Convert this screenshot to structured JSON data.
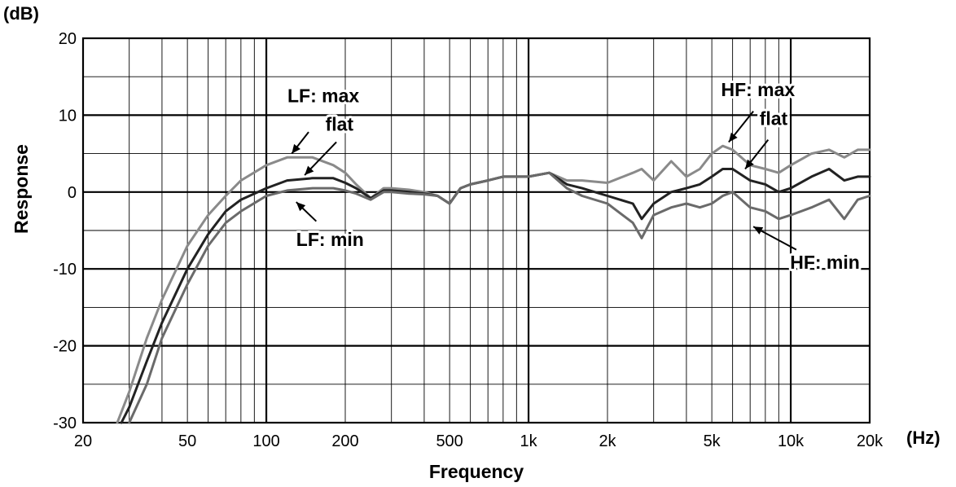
{
  "chart_data": {
    "type": "line",
    "title": "",
    "xlabel": "Frequency",
    "ylabel": "Response",
    "x_unit": "(Hz)",
    "y_unit": "(dB)",
    "x_scale": "log",
    "xlim": [
      20,
      20000
    ],
    "ylim": [
      -30,
      20
    ],
    "grid": true,
    "x_ticks": [
      {
        "value": 20,
        "label": "20"
      },
      {
        "value": 50,
        "label": "50"
      },
      {
        "value": 100,
        "label": "100"
      },
      {
        "value": 200,
        "label": "200"
      },
      {
        "value": 500,
        "label": "500"
      },
      {
        "value": 1000,
        "label": "1k"
      },
      {
        "value": 2000,
        "label": "2k"
      },
      {
        "value": 5000,
        "label": "5k"
      },
      {
        "value": 10000,
        "label": "10k"
      },
      {
        "value": 20000,
        "label": "20k"
      }
    ],
    "y_ticks": [
      {
        "value": 20,
        "label": "20"
      },
      {
        "value": 10,
        "label": "10"
      },
      {
        "value": 0,
        "label": "0"
      },
      {
        "value": -10,
        "label": "-10"
      },
      {
        "value": -20,
        "label": "-20"
      },
      {
        "value": -30,
        "label": "-30"
      }
    ],
    "series": [
      {
        "color": "#8a8a8a",
        "x": [
          27,
          30,
          35,
          40,
          50,
          60,
          70,
          80,
          100,
          120,
          150,
          180,
          200,
          220,
          250,
          280,
          300,
          350,
          400,
          450,
          500,
          550,
          600,
          700,
          800,
          1000,
          1200,
          1400,
          1600,
          2000,
          2500,
          2700,
          3000,
          3500,
          4000,
          4500,
          5000,
          5500,
          6000,
          7000,
          8000,
          9000,
          10000,
          12000,
          14000,
          16000,
          18000,
          20000
        ],
        "y": [
          -30,
          -26,
          -19,
          -14,
          -7,
          -3,
          -0.5,
          1.5,
          3.5,
          4.5,
          4.5,
          3.5,
          2.5,
          1,
          -0.8,
          0.5,
          0.5,
          0.3,
          0,
          -0.5,
          -1.5,
          0.5,
          1,
          1.5,
          2,
          2,
          2.5,
          1.5,
          1.5,
          1.2,
          2.5,
          3,
          1.5,
          4,
          2,
          3,
          5,
          6,
          5.5,
          3.5,
          3,
          2.5,
          3.5,
          5,
          5.5,
          4.5,
          5.5,
          5.5
        ]
      },
      {
        "color": "#222222",
        "x": [
          28,
          30,
          35,
          40,
          50,
          60,
          70,
          80,
          100,
          120,
          150,
          180,
          200,
          220,
          250,
          280,
          300,
          350,
          400,
          450,
          500,
          550,
          600,
          700,
          800,
          1000,
          1200,
          1400,
          1600,
          2000,
          2500,
          2700,
          3000,
          3500,
          4000,
          4500,
          5000,
          5500,
          6000,
          7000,
          8000,
          9000,
          10000,
          12000,
          14000,
          16000,
          18000,
          20000
        ],
        "y": [
          -30,
          -28,
          -22,
          -17,
          -10,
          -5.5,
          -2.5,
          -1,
          0.5,
          1.5,
          1.8,
          1.8,
          1.2,
          0.5,
          -0.8,
          0.2,
          0.2,
          0,
          -0.2,
          -0.5,
          -1.5,
          0.5,
          1,
          1.5,
          2,
          2,
          2.5,
          1,
          0.5,
          -0.5,
          -1.5,
          -3.5,
          -1.5,
          0,
          0.5,
          1,
          2,
          3,
          3,
          1.5,
          1,
          0,
          0.5,
          2,
          3,
          1.5,
          2,
          2
        ]
      },
      {
        "color": "#6a6a6a",
        "x": [
          30,
          35,
          40,
          50,
          60,
          70,
          80,
          100,
          120,
          150,
          180,
          200,
          220,
          250,
          280,
          300,
          350,
          400,
          450,
          500,
          550,
          600,
          700,
          800,
          1000,
          1200,
          1400,
          1600,
          2000,
          2500,
          2700,
          3000,
          3500,
          4000,
          4500,
          5000,
          5500,
          6000,
          7000,
          8000,
          9000,
          10000,
          12000,
          14000,
          16000,
          18000,
          20000
        ],
        "y": [
          -30,
          -25,
          -19,
          -12,
          -7,
          -4,
          -2.5,
          -0.5,
          0.2,
          0.5,
          0.5,
          0.2,
          -0.2,
          -1,
          0,
          0,
          -0.2,
          -0.3,
          -0.5,
          -1.5,
          0.5,
          1,
          1.5,
          2,
          2,
          2.5,
          0.5,
          -0.5,
          -1.5,
          -4,
          -6,
          -3,
          -2,
          -1.5,
          -2,
          -1.5,
          -0.5,
          0,
          -2,
          -2.5,
          -3.5,
          -3,
          -2,
          -1,
          -3.5,
          -1,
          -0.5
        ]
      }
    ],
    "annotations": [
      {
        "text": "LF: max",
        "x": 165,
        "y": 11.7,
        "arrow_from": [
          145,
          7.8
        ],
        "arrow_to": [
          125,
          5
        ]
      },
      {
        "text": "flat",
        "x": 190,
        "y": 8,
        "arrow_from": [
          185,
          6.5
        ],
        "arrow_to": [
          140,
          2.2
        ]
      },
      {
        "text": "LF: min",
        "x": 175,
        "y": -7,
        "arrow_from": [
          155,
          -3.8
        ],
        "arrow_to": [
          130,
          -1.3
        ]
      },
      {
        "text": "HF: max",
        "x": 7500,
        "y": 12.5,
        "arrow_from": [
          7200,
          10.5
        ],
        "arrow_to": [
          5800,
          6.5
        ]
      },
      {
        "text": "flat",
        "x": 8600,
        "y": 8.7,
        "arrow_from": [
          8200,
          6.8
        ],
        "arrow_to": [
          6700,
          3
        ]
      },
      {
        "text": "HF: min",
        "x": 13500,
        "y": -10,
        "arrow_from": [
          10500,
          -7.5
        ],
        "arrow_to": [
          7200,
          -4.5
        ]
      }
    ]
  }
}
